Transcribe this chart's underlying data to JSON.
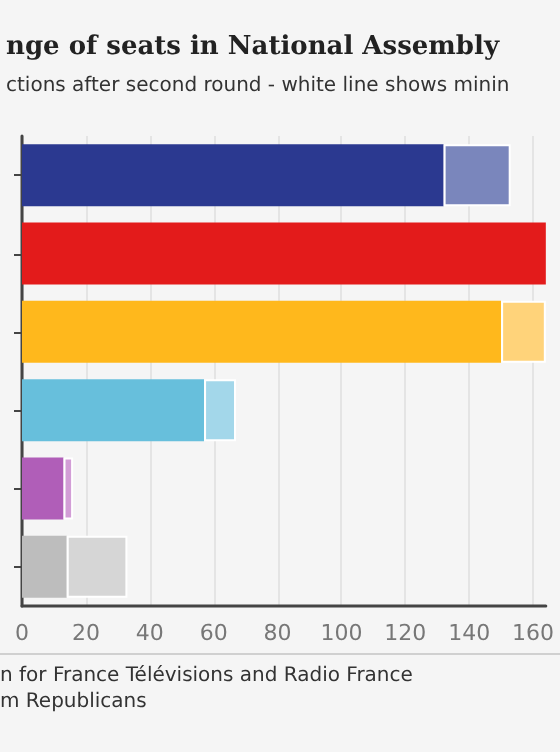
{
  "chart_data": {
    "type": "bar",
    "orientation": "horizontal",
    "stacked": true,
    "title": "nge of seats in National Assembly",
    "subtitle": "ctions after second round - white line shows minin",
    "categories": [
      null,
      null,
      null,
      null,
      null,
      null
    ],
    "series": [
      {
        "colors": [
          "#2b3990",
          "#e31b1b",
          "#ffb81c",
          "#67bfdc",
          "#b05eb8",
          "#bdbdbd"
        ],
        "values": [
          132,
          164,
          150,
          57,
          13,
          14
        ]
      },
      {
        "colors": [
          "#7a86bc",
          "#e31b1b",
          "#ffd37a",
          "#a3d7ea",
          "#d29dd6",
          "#d6d6d6"
        ],
        "values": [
          21,
          null,
          14,
          10,
          3,
          19
        ]
      }
    ],
    "xlim": [
      0,
      164
    ],
    "xticks": [
      0,
      20,
      40,
      60,
      80,
      100,
      120,
      140,
      160
    ],
    "grid": "x",
    "annotations": [
      "n for France Télévisions and Radio France",
      "m Republicans"
    ]
  }
}
